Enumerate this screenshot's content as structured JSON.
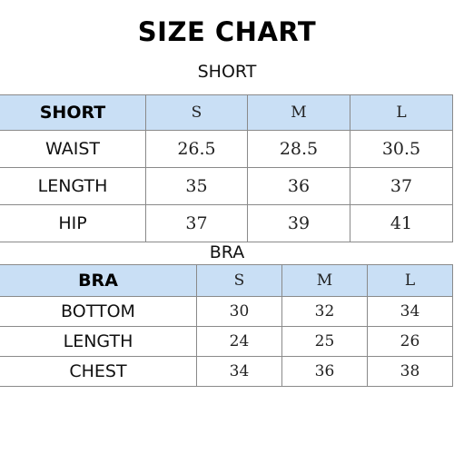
{
  "title": "SIZE CHART",
  "short": {
    "caption": "SHORT",
    "header_label": "SHORT",
    "sizes": [
      "S",
      "M",
      "L"
    ],
    "rows": [
      {
        "label": "WAIST",
        "values": [
          "26.5",
          "28.5",
          "30.5"
        ]
      },
      {
        "label": "LENGTH",
        "values": [
          "35",
          "36",
          "37"
        ]
      },
      {
        "label": "HIP",
        "values": [
          "37",
          "39",
          "41"
        ]
      }
    ]
  },
  "bra": {
    "caption": "BRA",
    "header_label": "BRA",
    "sizes": [
      "S",
      "M",
      "L"
    ],
    "rows": [
      {
        "label": "BOTTOM",
        "values": [
          "30",
          "32",
          "34"
        ]
      },
      {
        "label": "LENGTH",
        "values": [
          "24",
          "25",
          "26"
        ]
      },
      {
        "label": "CHEST",
        "values": [
          "34",
          "36",
          "38"
        ]
      }
    ]
  },
  "colors": {
    "header_background": "#c9dff5",
    "grid_lines": "#8a8a8a"
  }
}
